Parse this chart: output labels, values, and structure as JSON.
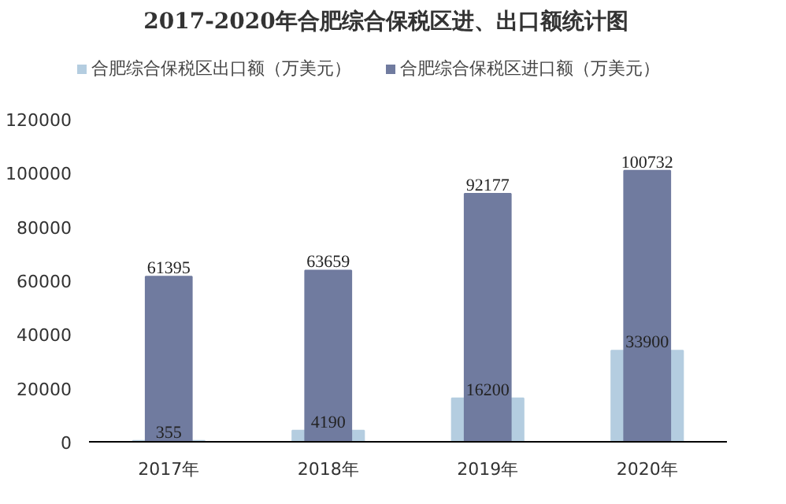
{
  "chart_data": {
    "type": "bar",
    "title": "2017-2020年合肥综合保税区进、出口额统计图",
    "categories": [
      "2017年",
      "2018年",
      "2019年",
      "2020年"
    ],
    "series": [
      {
        "name": "合肥综合保税区出口额（万美元）",
        "color": "#b4cde0",
        "values": [
          355,
          4190,
          16200,
          33900
        ]
      },
      {
        "name": "合肥综合保税区进口额（万美元）",
        "color": "#707b9f",
        "values": [
          61395,
          63659,
          92177,
          100732
        ]
      }
    ],
    "ylim": [
      0,
      120000
    ],
    "yticks": [
      0,
      20000,
      40000,
      60000,
      80000,
      100000,
      120000
    ],
    "grid": false,
    "legend": "top",
    "data_labels": true
  }
}
